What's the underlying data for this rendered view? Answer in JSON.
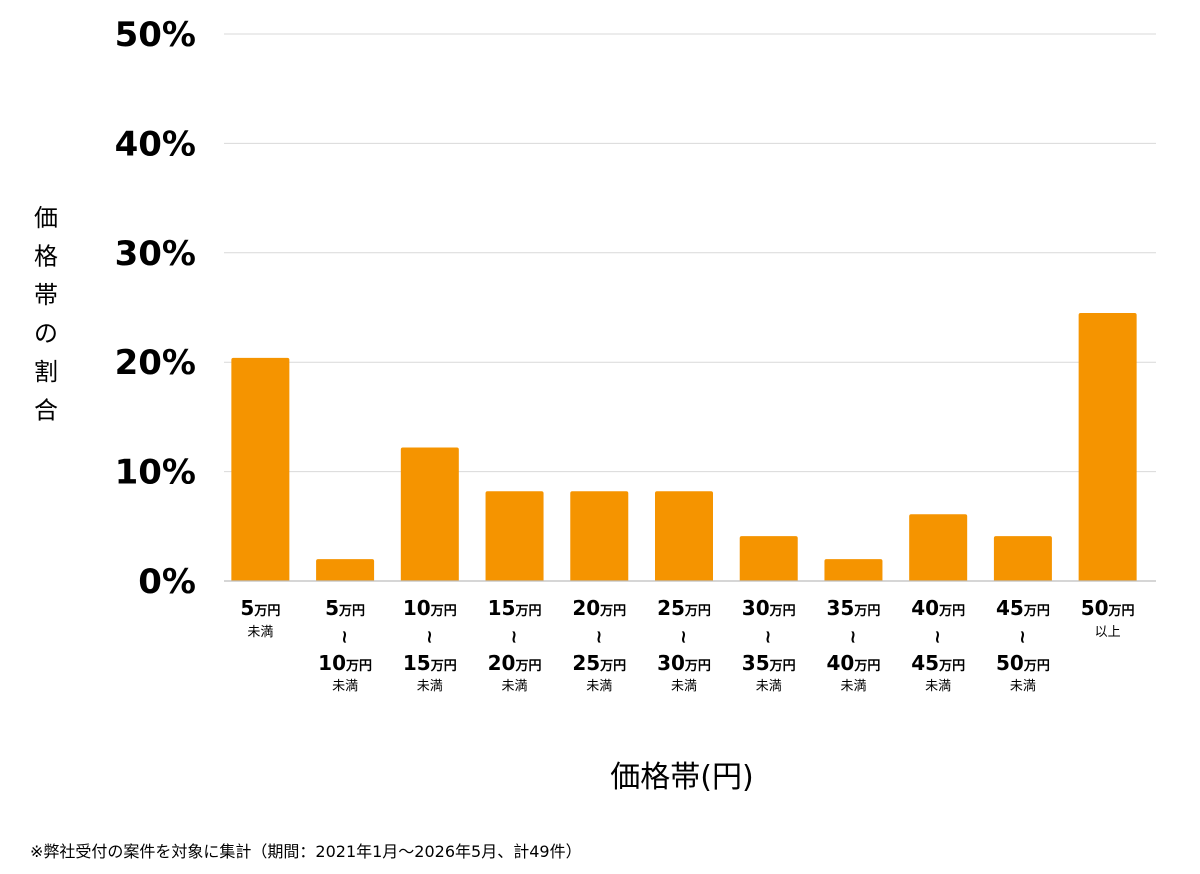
{
  "chart_data": {
    "type": "bar",
    "title": "",
    "xlabel": "価格帯(円)",
    "ylabel": "価格帯の割合",
    "ylim": [
      0,
      50
    ],
    "yticks": [
      "0%",
      "10%",
      "20%",
      "30%",
      "40%",
      "50%"
    ],
    "grid": true,
    "bar_color": "#F59400",
    "categories": [
      {
        "from": "5",
        "unit": "万円",
        "note": "未満"
      },
      {
        "from": "5",
        "unit": "万円",
        "sep": "~",
        "to": "10",
        "to_unit": "万円",
        "note": "未満"
      },
      {
        "from": "10",
        "unit": "万円",
        "sep": "~",
        "to": "15",
        "to_unit": "万円",
        "note": "未満"
      },
      {
        "from": "15",
        "unit": "万円",
        "sep": "~",
        "to": "20",
        "to_unit": "万円",
        "note": "未満"
      },
      {
        "from": "20",
        "unit": "万円",
        "sep": "~",
        "to": "25",
        "to_unit": "万円",
        "note": "未満"
      },
      {
        "from": "25",
        "unit": "万円",
        "sep": "~",
        "to": "30",
        "to_unit": "万円",
        "note": "未満"
      },
      {
        "from": "30",
        "unit": "万円",
        "sep": "~",
        "to": "35",
        "to_unit": "万円",
        "note": "未満"
      },
      {
        "from": "35",
        "unit": "万円",
        "sep": "~",
        "to": "40",
        "to_unit": "万円",
        "note": "未満"
      },
      {
        "from": "40",
        "unit": "万円",
        "sep": "~",
        "to": "45",
        "to_unit": "万円",
        "note": "未満"
      },
      {
        "from": "45",
        "unit": "万円",
        "sep": "~",
        "to": "50",
        "to_unit": "万円",
        "note": "未満"
      },
      {
        "from": "50",
        "unit": "万円",
        "note": "以上"
      }
    ],
    "values": [
      20.4,
      2.0,
      12.2,
      8.2,
      8.2,
      8.2,
      4.1,
      2.0,
      6.1,
      4.1,
      24.5
    ]
  },
  "footnote": "※弊社受付の案件を対象に集計（期間：2021年1月〜2026年5月、計49件）"
}
